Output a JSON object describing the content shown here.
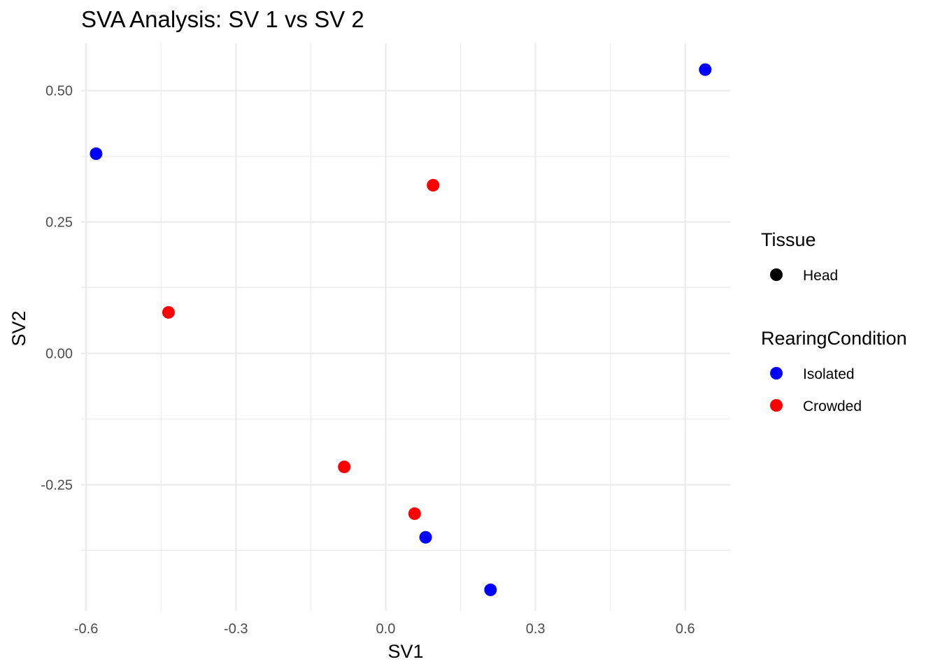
{
  "chart_data": {
    "type": "scatter",
    "title": "SVA Analysis: SV 1  vs SV 2",
    "xlabel": "SV1",
    "ylabel": "SV2",
    "xlim": [
      -0.61,
      0.69
    ],
    "ylim": [
      -0.49,
      0.59
    ],
    "x_ticks": [
      -0.6,
      -0.3,
      0.0,
      0.3,
      0.6
    ],
    "x_tick_labels": [
      "-0.6",
      "-0.3",
      "0.0",
      "0.3",
      "0.6"
    ],
    "y_ticks": [
      -0.25,
      0.0,
      0.25,
      0.5
    ],
    "y_tick_labels": [
      "-0.25",
      "0.00",
      "0.25",
      "0.50"
    ],
    "grid": true,
    "legend_position": "right",
    "legends": [
      {
        "title": "Tissue",
        "entries": [
          {
            "label": "Head",
            "color": "#000000"
          }
        ]
      },
      {
        "title": "RearingCondition",
        "entries": [
          {
            "label": "Isolated",
            "color": "#0000ff"
          },
          {
            "label": "Crowded",
            "color": "#ff0000"
          }
        ]
      }
    ],
    "series": [
      {
        "name": "Isolated",
        "color": "#0000ff",
        "points": [
          {
            "x": -0.58,
            "y": 0.38
          },
          {
            "x": 0.64,
            "y": 0.54
          },
          {
            "x": 0.08,
            "y": -0.35
          },
          {
            "x": 0.21,
            "y": -0.45
          }
        ]
      },
      {
        "name": "Crowded",
        "color": "#ff0000",
        "points": [
          {
            "x": 0.095,
            "y": 0.32
          },
          {
            "x": -0.435,
            "y": 0.078
          },
          {
            "x": -0.083,
            "y": -0.216
          },
          {
            "x": 0.058,
            "y": -0.305
          }
        ]
      }
    ]
  }
}
